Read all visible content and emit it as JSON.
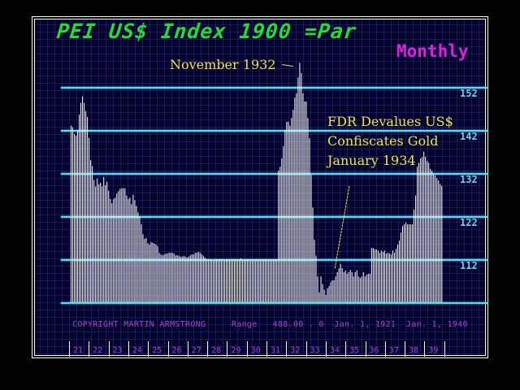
{
  "chart_data": {
    "type": "bar",
    "title": "PEI US$ Index 1900 =Par",
    "subtitle": "Monthly",
    "xlabel": "",
    "ylabel": "",
    "ylim": [
      102,
      160
    ],
    "grid": true,
    "y_ticks": [
      152,
      142,
      132,
      122,
      112
    ],
    "x_ticks": [
      "21",
      "22",
      "23",
      "24",
      "25",
      "26",
      "27",
      "28",
      "29",
      "30",
      "31",
      "32",
      "33",
      "34",
      "35",
      "36",
      "37",
      "38",
      "39"
    ],
    "annotations": [
      {
        "text": "November 1932",
        "points_to": "1932-11 peak"
      },
      {
        "text": "FDR Devalues US$\nConfiscates Gold\nJanuary 1934",
        "points_to": "1934-01 low"
      }
    ],
    "footer": "COPYRIGHT MARTIN ARMSTRONG   Range 488.00 . 0 Jan. 1, 1921 Jan. 1, 1940",
    "x_start": "1921-01",
    "frequency": "monthly",
    "values": [
      143,
      142.6,
      141.1,
      140.7,
      142,
      145.6,
      148.3,
      149.8,
      148.3,
      146.4,
      145,
      140.2,
      135,
      133.6,
      130.4,
      128.9,
      130.7,
      129.4,
      129.8,
      128.9,
      131.1,
      129.2,
      130,
      127.9,
      126,
      125,
      126,
      126.3,
      127.2,
      127.8,
      128.3,
      128.5,
      128.5,
      128.5,
      126.8,
      126,
      126.3,
      124.8,
      127,
      125.7,
      124.4,
      122.9,
      121.9,
      120.1,
      117.8,
      116.7,
      116.9,
      115.7,
      115.4,
      116,
      115.8,
      115.6,
      115.4,
      115,
      113.5,
      113.1,
      112.9,
      113.1,
      113.3,
      113.3,
      113.5,
      113.5,
      113.5,
      113.3,
      112.9,
      112.9,
      112.8,
      112.6,
      112.6,
      112.8,
      112.6,
      112.4,
      112.6,
      112.9,
      113.1,
      113.1,
      113.5,
      113.5,
      113.7,
      113.5,
      113.1,
      112.8,
      112.4,
      112,
      112,
      112,
      111.8,
      111.8,
      112,
      112,
      112,
      112,
      112,
      112,
      111.8,
      112,
      112,
      112,
      112,
      112,
      112,
      112,
      112,
      112,
      112.2,
      112,
      112,
      112,
      112,
      112,
      112,
      112,
      112,
      112,
      112,
      112,
      112,
      112,
      112,
      112,
      112,
      112,
      112,
      112,
      112,
      112,
      112,
      132.6,
      133.5,
      135.4,
      138.2,
      142,
      143.9,
      143.9,
      143,
      144.8,
      146.7,
      149.5,
      150.5,
      154.2,
      157.6,
      155.2,
      150.5,
      148.6,
      148.6,
      144.8,
      140.1,
      131.6,
      124,
      116.5,
      112.8,
      108,
      104.3,
      108,
      106.2,
      104.9,
      103.7,
      105.2,
      105.8,
      106.7,
      107.1,
      107.1,
      108,
      109,
      109.9,
      110.9,
      109.9,
      109,
      109.4,
      108.6,
      109,
      109.5,
      109,
      108,
      109,
      109.4,
      108,
      107.7,
      108,
      109,
      108,
      108.4,
      108.6,
      108.6,
      114.6,
      114.6,
      114.3,
      114.3,
      114,
      113.5,
      114,
      113.7,
      114,
      113.3,
      113.5,
      113.3,
      113.1,
      114,
      113.5,
      114.4,
      115.4,
      116.3,
      118.2,
      119.7,
      120.1,
      120.5,
      120.1,
      120.1,
      120.1,
      120.1,
      123.5,
      126.8,
      133.5,
      134.4,
      135.4,
      135.7,
      137,
      135.8,
      134.8,
      134.4,
      133,
      132.5,
      131.9,
      131.4,
      130.8,
      130.3,
      129.5,
      129
    ]
  },
  "header": {
    "title": "PEI US$ Index 1900 =Par",
    "period": "Monthly"
  },
  "annotations": {
    "nov1932": "November 1932",
    "fdr_line1": "FDR Devalues US$",
    "fdr_line2": "Confiscates Gold",
    "fdr_line3": "January 1934"
  },
  "y_axis": {
    "labels": [
      "152",
      "142",
      "132",
      "122",
      "112"
    ]
  },
  "footer": {
    "copyright": "COPYRIGHT MARTIN ARMSTRONG",
    "range_label": "Range",
    "range_value": "488.00 . 0",
    "start_date": "Jan.  1,  1921",
    "end_date": "Jan.  1,  1940"
  },
  "x_axis": {
    "years": [
      "21",
      "22",
      "23",
      "24",
      "25",
      "26",
      "27",
      "28",
      "29",
      "30",
      "31",
      "32",
      "33",
      "34",
      "35",
      "36",
      "37",
      "38",
      "39"
    ]
  },
  "colors": {
    "background": "#03032a",
    "title": "#22dd33",
    "period": "#dd22dd",
    "gridline": "#5fd7f0",
    "annotation": "#f2e24a",
    "footer": "#b040d0",
    "bars": "#ffffff"
  }
}
